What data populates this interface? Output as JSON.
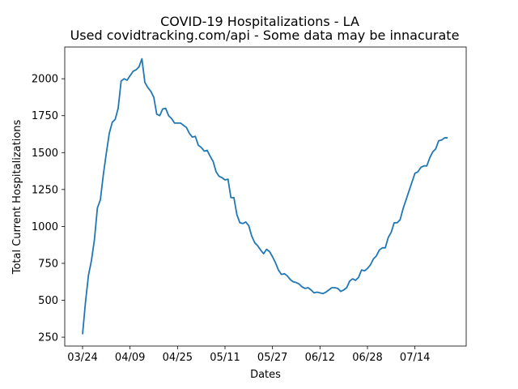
{
  "chart_data": {
    "type": "line",
    "title": "COVID-19 Hospitalizations - LA",
    "subtitle": "Used covidtracking.com/api - Some data may be innacurate",
    "xlabel": "Dates",
    "ylabel": "Total Current Hospitalizations",
    "x_ticks": [
      "03/24",
      "04/09",
      "04/25",
      "05/11",
      "05/27",
      "06/12",
      "06/28",
      "07/14"
    ],
    "y_ticks": [
      250,
      500,
      750,
      1000,
      1250,
      1500,
      1750,
      2000
    ],
    "ylim": [
      190,
      2215
    ],
    "grid": false,
    "legend": "none",
    "series": [
      {
        "color": "#1f77b4",
        "x": [
          "03/24",
          "03/25",
          "03/26",
          "03/27",
          "03/28",
          "03/29",
          "03/30",
          "03/31",
          "04/01",
          "04/02",
          "04/03",
          "04/04",
          "04/05",
          "04/06",
          "04/07",
          "04/08",
          "04/09",
          "04/10",
          "04/11",
          "04/12",
          "04/13",
          "04/14",
          "04/15",
          "04/16",
          "04/17",
          "04/18",
          "04/19",
          "04/20",
          "04/21",
          "04/22",
          "04/23",
          "04/24",
          "04/25",
          "04/26",
          "04/27",
          "04/28",
          "04/29",
          "04/30",
          "05/01",
          "05/02",
          "05/03",
          "05/04",
          "05/05",
          "05/06",
          "05/07",
          "05/08",
          "05/09",
          "05/10",
          "05/11",
          "05/12",
          "05/13",
          "05/14",
          "05/15",
          "05/16",
          "05/17",
          "05/18",
          "05/19",
          "05/20",
          "05/21",
          "05/22",
          "05/23",
          "05/24",
          "05/25",
          "05/26",
          "05/27",
          "05/28",
          "05/29",
          "05/30",
          "05/31",
          "06/01",
          "06/02",
          "06/03",
          "06/04",
          "06/05",
          "06/06",
          "06/07",
          "06/08",
          "06/09",
          "06/10",
          "06/11",
          "06/12",
          "06/13",
          "06/14",
          "06/15",
          "06/16",
          "06/17",
          "06/18",
          "06/19",
          "06/20",
          "06/21",
          "06/22",
          "06/23",
          "06/24",
          "06/25",
          "06/26",
          "06/27",
          "06/28",
          "06/29",
          "06/30",
          "07/01",
          "07/02",
          "07/03",
          "07/04",
          "07/05",
          "07/06",
          "07/07",
          "07/08",
          "07/09",
          "07/10",
          "07/11",
          "07/12",
          "07/13",
          "07/14",
          "07/15",
          "07/16",
          "07/17",
          "07/18",
          "07/19",
          "07/20",
          "07/21",
          "07/22",
          "07/23",
          "07/24",
          "07/25"
        ],
        "values": [
          270,
          490,
          670,
          770,
          910,
          1125,
          1180,
          1350,
          1495,
          1630,
          1705,
          1725,
          1800,
          1985,
          2000,
          1990,
          2020,
          2050,
          2060,
          2080,
          2135,
          1975,
          1940,
          1915,
          1875,
          1760,
          1750,
          1795,
          1800,
          1750,
          1730,
          1700,
          1700,
          1700,
          1685,
          1670,
          1630,
          1605,
          1610,
          1550,
          1535,
          1510,
          1515,
          1475,
          1440,
          1370,
          1340,
          1330,
          1315,
          1320,
          1195,
          1195,
          1080,
          1025,
          1020,
          1030,
          1005,
          935,
          890,
          870,
          840,
          815,
          845,
          830,
          795,
          755,
          705,
          675,
          680,
          665,
          640,
          625,
          620,
          610,
          590,
          580,
          585,
          570,
          550,
          555,
          550,
          545,
          555,
          570,
          585,
          585,
          580,
          560,
          570,
          585,
          630,
          645,
          635,
          655,
          705,
          700,
          715,
          740,
          780,
          800,
          840,
          855,
          855,
          925,
          960,
          1025,
          1025,
          1045,
          1120,
          1180,
          1240,
          1300,
          1360,
          1370,
          1400,
          1410,
          1410,
          1465,
          1505,
          1525,
          1580,
          1585,
          1600,
          1600
        ]
      }
    ]
  }
}
